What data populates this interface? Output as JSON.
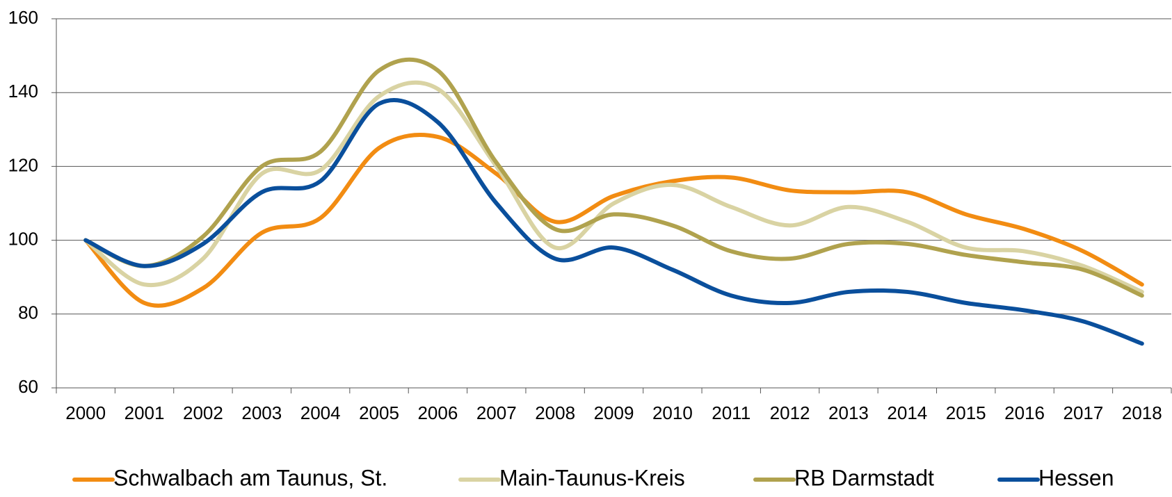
{
  "chart_data": {
    "type": "line",
    "categories": [
      "2000",
      "2001",
      "2002",
      "2003",
      "2004",
      "2005",
      "2006",
      "2007",
      "2008",
      "2009",
      "2010",
      "2011",
      "2012",
      "2013",
      "2014",
      "2015",
      "2016",
      "2017",
      "2018"
    ],
    "series": [
      {
        "name": "Schwalbach am Taunus, St.",
        "color": "#f28c12",
        "values": [
          100,
          83,
          87,
          102,
          106,
          125,
          128,
          118,
          105,
          112,
          116,
          117,
          113.5,
          113,
          113,
          107,
          103,
          97,
          88
        ]
      },
      {
        "name": "Main-Taunus-Kreis",
        "color": "#d9d3a3",
        "values": [
          100,
          88,
          95,
          118,
          119,
          139,
          141,
          120,
          98,
          110,
          115,
          109,
          104,
          109,
          105,
          98,
          97,
          93,
          86
        ]
      },
      {
        "name": "RB Darmstadt",
        "color": "#b0a24e",
        "values": [
          100,
          93,
          101,
          120,
          124,
          146,
          146,
          121,
          103,
          107,
          104,
          97,
          95,
          99,
          99,
          96,
          94,
          92,
          85
        ]
      },
      {
        "name": "Hessen",
        "color": "#0a4f9c",
        "values": [
          100,
          93,
          99,
          113,
          116,
          137,
          132,
          110,
          95,
          98,
          92,
          85,
          83,
          86,
          86,
          83,
          81,
          78,
          72
        ]
      }
    ],
    "ylim": [
      60,
      160
    ],
    "yticks": [
      60,
      80,
      100,
      120,
      140,
      160
    ],
    "grid": true,
    "legend": "bottom"
  }
}
